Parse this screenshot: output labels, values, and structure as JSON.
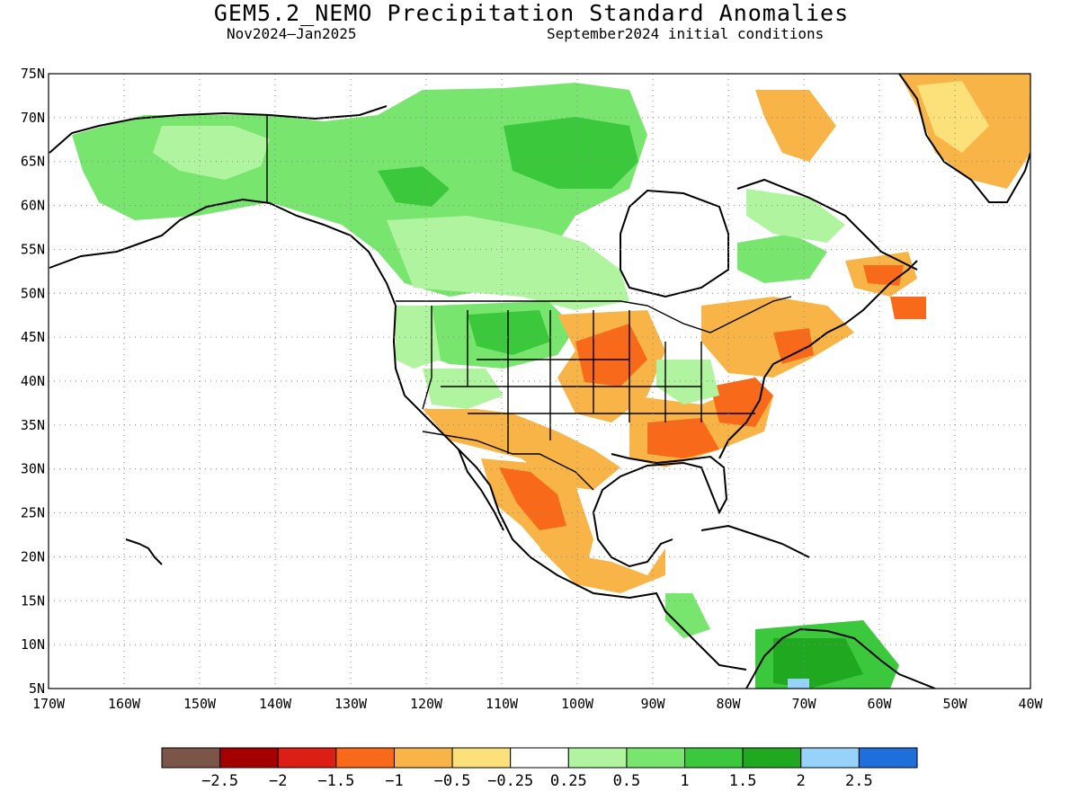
{
  "title": "GEM5.2_NEMO Precipitation Standard Anomalies",
  "period": "Nov2024–Jan2025",
  "init": "September2024 initial conditions",
  "lat_labels": [
    "75N",
    "70N",
    "65N",
    "60N",
    "55N",
    "50N",
    "45N",
    "40N",
    "35N",
    "30N",
    "25N",
    "20N",
    "15N",
    "10N",
    "5N"
  ],
  "lon_labels": [
    "170W",
    "160W",
    "150W",
    "140W",
    "130W",
    "120W",
    "110W",
    "100W",
    "90W",
    "80W",
    "70W",
    "60W",
    "50W",
    "40W"
  ],
  "colorbar": {
    "colors": [
      "#7b5548",
      "#a50000",
      "#dc1e14",
      "#f86a1a",
      "#f8b446",
      "#fce17a",
      "#ffffff",
      "#b0f4a0",
      "#78e56e",
      "#3cc83c",
      "#20a820",
      "#96d2fa",
      "#1e6edc"
    ],
    "labels": [
      "−2.5",
      "−2",
      "−1.5",
      "−1",
      "−0.5",
      "−0.25",
      "0.25",
      "0.5",
      "1",
      "1.5",
      "2",
      "2.5"
    ]
  },
  "anomaly_colors": {
    "very_wet": "#20a820",
    "wet": "#3cc83c",
    "moderately_wet": "#78e56e",
    "slightly_wet": "#b0f4a0",
    "slightly_dry": "#fce17a",
    "dry": "#f8b446",
    "very_dry": "#f86a1a"
  }
}
